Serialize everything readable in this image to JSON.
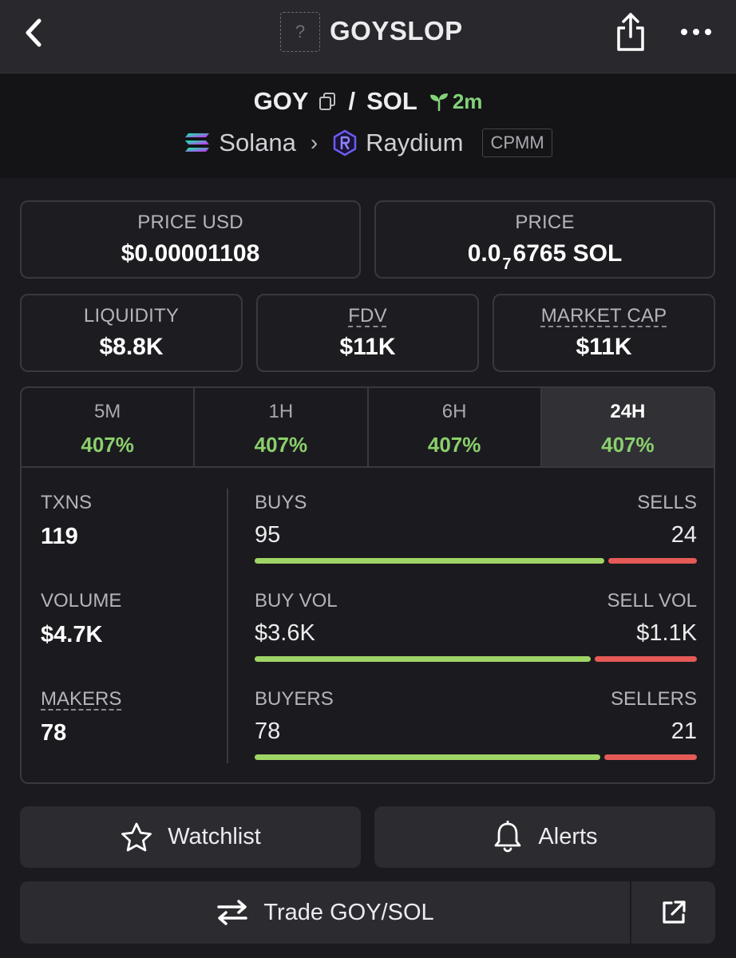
{
  "header": {
    "title": "GOYSLOP",
    "logo_placeholder": "?",
    "icons": [
      "back-chevron-icon",
      "share-icon",
      "more-icon"
    ]
  },
  "pair": {
    "base": "GOY",
    "separator": "/",
    "quote": "SOL",
    "age": "2m",
    "chain": "Solana",
    "dex": "Raydium",
    "dex_badge": "CPMM"
  },
  "stats": {
    "price_usd_label": "PRICE USD",
    "price_usd": "$0.00001108",
    "price_native_label": "PRICE",
    "price_native_prefix": "0.0",
    "price_native_zero_count": "7",
    "price_native_suffix": "6765 SOL",
    "liquidity_label": "LIQUIDITY",
    "liquidity": "$8.8K",
    "fdv_label": "FDV",
    "fdv": "$11K",
    "mcap_label": "MARKET CAP",
    "mcap": "$11K"
  },
  "tabs": [
    {
      "label": "5M",
      "change": "407%"
    },
    {
      "label": "1H",
      "change": "407%"
    },
    {
      "label": "6H",
      "change": "407%"
    },
    {
      "label": "24H",
      "change": "407%",
      "active": true
    }
  ],
  "metrics": {
    "txns_label": "TXNS",
    "txns": "119",
    "volume_label": "VOLUME",
    "volume": "$4.7K",
    "makers_label": "MAKERS",
    "makers": "78"
  },
  "splits": {
    "txns": {
      "left_label": "BUYS",
      "left_value": "95",
      "right_label": "SELLS",
      "right_value": "24",
      "buy_fraction": 0.798
    },
    "volume": {
      "left_label": "BUY VOL",
      "left_value": "$3.6K",
      "right_label": "SELL VOL",
      "right_value": "$1.1K",
      "buy_fraction": 0.766
    },
    "makers": {
      "left_label": "BUYERS",
      "left_value": "78",
      "right_label": "SELLERS",
      "right_value": "21",
      "buy_fraction": 0.788
    }
  },
  "actions": {
    "watchlist": "Watchlist",
    "alerts": "Alerts",
    "trade": "Trade GOY/SOL"
  },
  "colors": {
    "background": "#1b1b1f",
    "buy": "#9fd566",
    "sell": "#e55a57",
    "positive_text": "#8bcf6c",
    "age_green": "#84d27a"
  }
}
